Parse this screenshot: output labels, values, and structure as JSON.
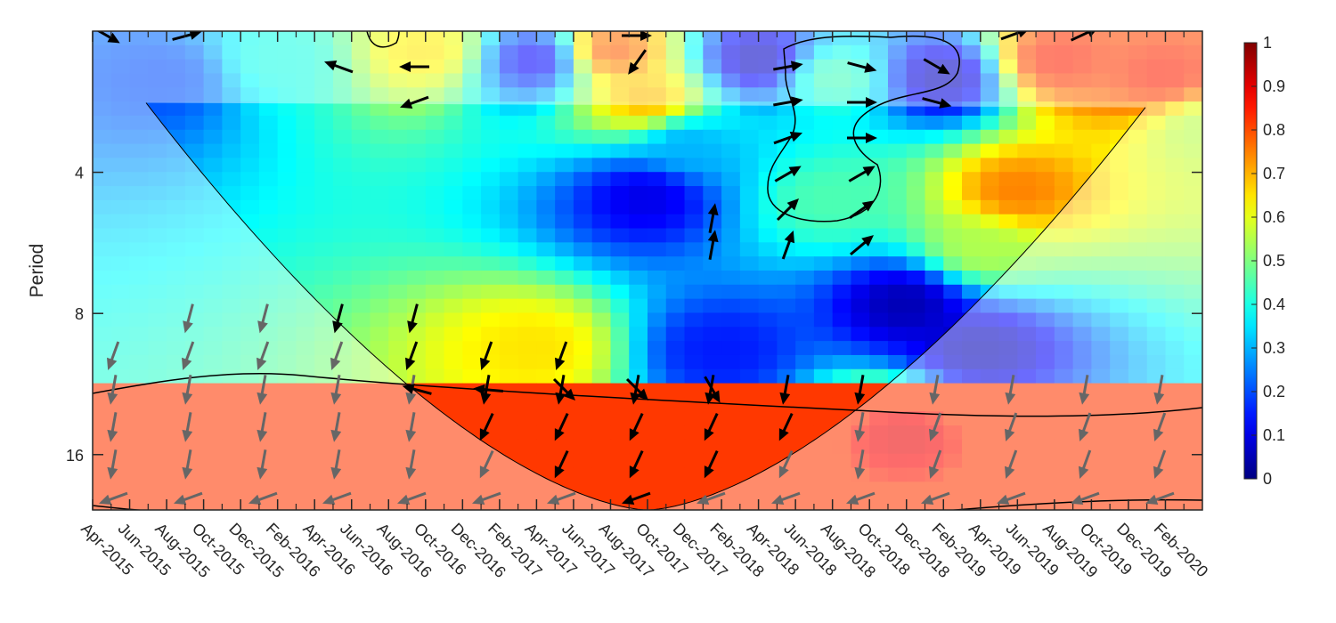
{
  "chart_data": {
    "type": "heatmap",
    "subtype": "wavelet-coherence",
    "title": "",
    "xlabel": "",
    "ylabel": "Period",
    "x_tick_labels": [
      "Apr-2015",
      "Jun-2015",
      "Aug-2015",
      "Oct-2015",
      "Dec-2015",
      "Feb-2016",
      "Apr-2016",
      "Jun-2016",
      "Aug-2016",
      "Oct-2016",
      "Dec-2016",
      "Feb-2017",
      "Apr-2017",
      "Jun-2017",
      "Aug-2017",
      "Oct-2017",
      "Dec-2017",
      "Feb-2018",
      "Apr-2018",
      "Jun-2018",
      "Aug-2018",
      "Oct-2018",
      "Dec-2018",
      "Feb-2019",
      "Apr-2019",
      "Jun-2019",
      "Aug-2019",
      "Oct-2019",
      "Dec-2019",
      "Feb-2020"
    ],
    "y_ticks": [
      4,
      8,
      16
    ],
    "y_tick_labels": [
      "4",
      "8",
      "16"
    ],
    "y_scale": "log2",
    "y_range": [
      2,
      21
    ],
    "y_direction": "reversed",
    "x_range": [
      "Apr-2015",
      "Apr-2020"
    ],
    "colorbar": {
      "min": 0,
      "max": 1,
      "ticks": [
        0,
        0.1,
        0.2,
        0.3,
        0.4,
        0.5,
        0.6,
        0.7,
        0.8,
        0.9,
        1
      ],
      "tick_labels": [
        "0",
        "0.1",
        "0.2",
        "0.3",
        "0.4",
        "0.5",
        "0.6",
        "0.7",
        "0.8",
        "0.9",
        "1"
      ],
      "colormap": "jet"
    },
    "cone_of_influence": true,
    "regions": [
      {
        "x_month": 4,
        "period": 2.5,
        "coherence": 0.2
      },
      {
        "x_month": 10,
        "period": 2.3,
        "coherence": 0.4
      },
      {
        "x_month": 18,
        "period": 2.2,
        "coherence": 0.65
      },
      {
        "x_month": 24,
        "period": 2.3,
        "coherence": 0.1
      },
      {
        "x_month": 28,
        "period": 2.2,
        "coherence": 0.8
      },
      {
        "x_month": 30,
        "period": 2.8,
        "coherence": 0.7
      },
      {
        "x_month": 32,
        "period": 3.5,
        "coherence": 0.3
      },
      {
        "x_month": 36,
        "period": 2.3,
        "coherence": 0.05
      },
      {
        "x_month": 40,
        "period": 2.5,
        "coherence": 0.45
      },
      {
        "x_month": 46,
        "period": 2.5,
        "coherence": 0.05
      },
      {
        "x_month": 52,
        "period": 2.3,
        "coherence": 0.85
      },
      {
        "x_month": 50,
        "period": 4.4,
        "coherence": 0.75
      },
      {
        "x_month": 58,
        "period": 2.5,
        "coherence": 0.85
      },
      {
        "x_month": 60,
        "period": 3.2,
        "coherence": 0.55
      },
      {
        "x_month": 48,
        "period": 5.8,
        "coherence": 0.55
      },
      {
        "x_month": 30,
        "period": 4.5,
        "coherence": 0.1
      },
      {
        "x_month": 40,
        "period": 4.6,
        "coherence": 0.45
      },
      {
        "x_month": 44,
        "period": 7.6,
        "coherence": 0.05
      },
      {
        "x_month": 24,
        "period": 9.5,
        "coherence": 0.65
      },
      {
        "x_month": 34,
        "period": 9.6,
        "coherence": 0.15
      },
      {
        "x_month": 48,
        "period": 9.6,
        "coherence": 0.05
      },
      {
        "x_month": 44,
        "period": 14.5,
        "coherence": 0.9
      }
    ],
    "significance_contours": 3
  }
}
